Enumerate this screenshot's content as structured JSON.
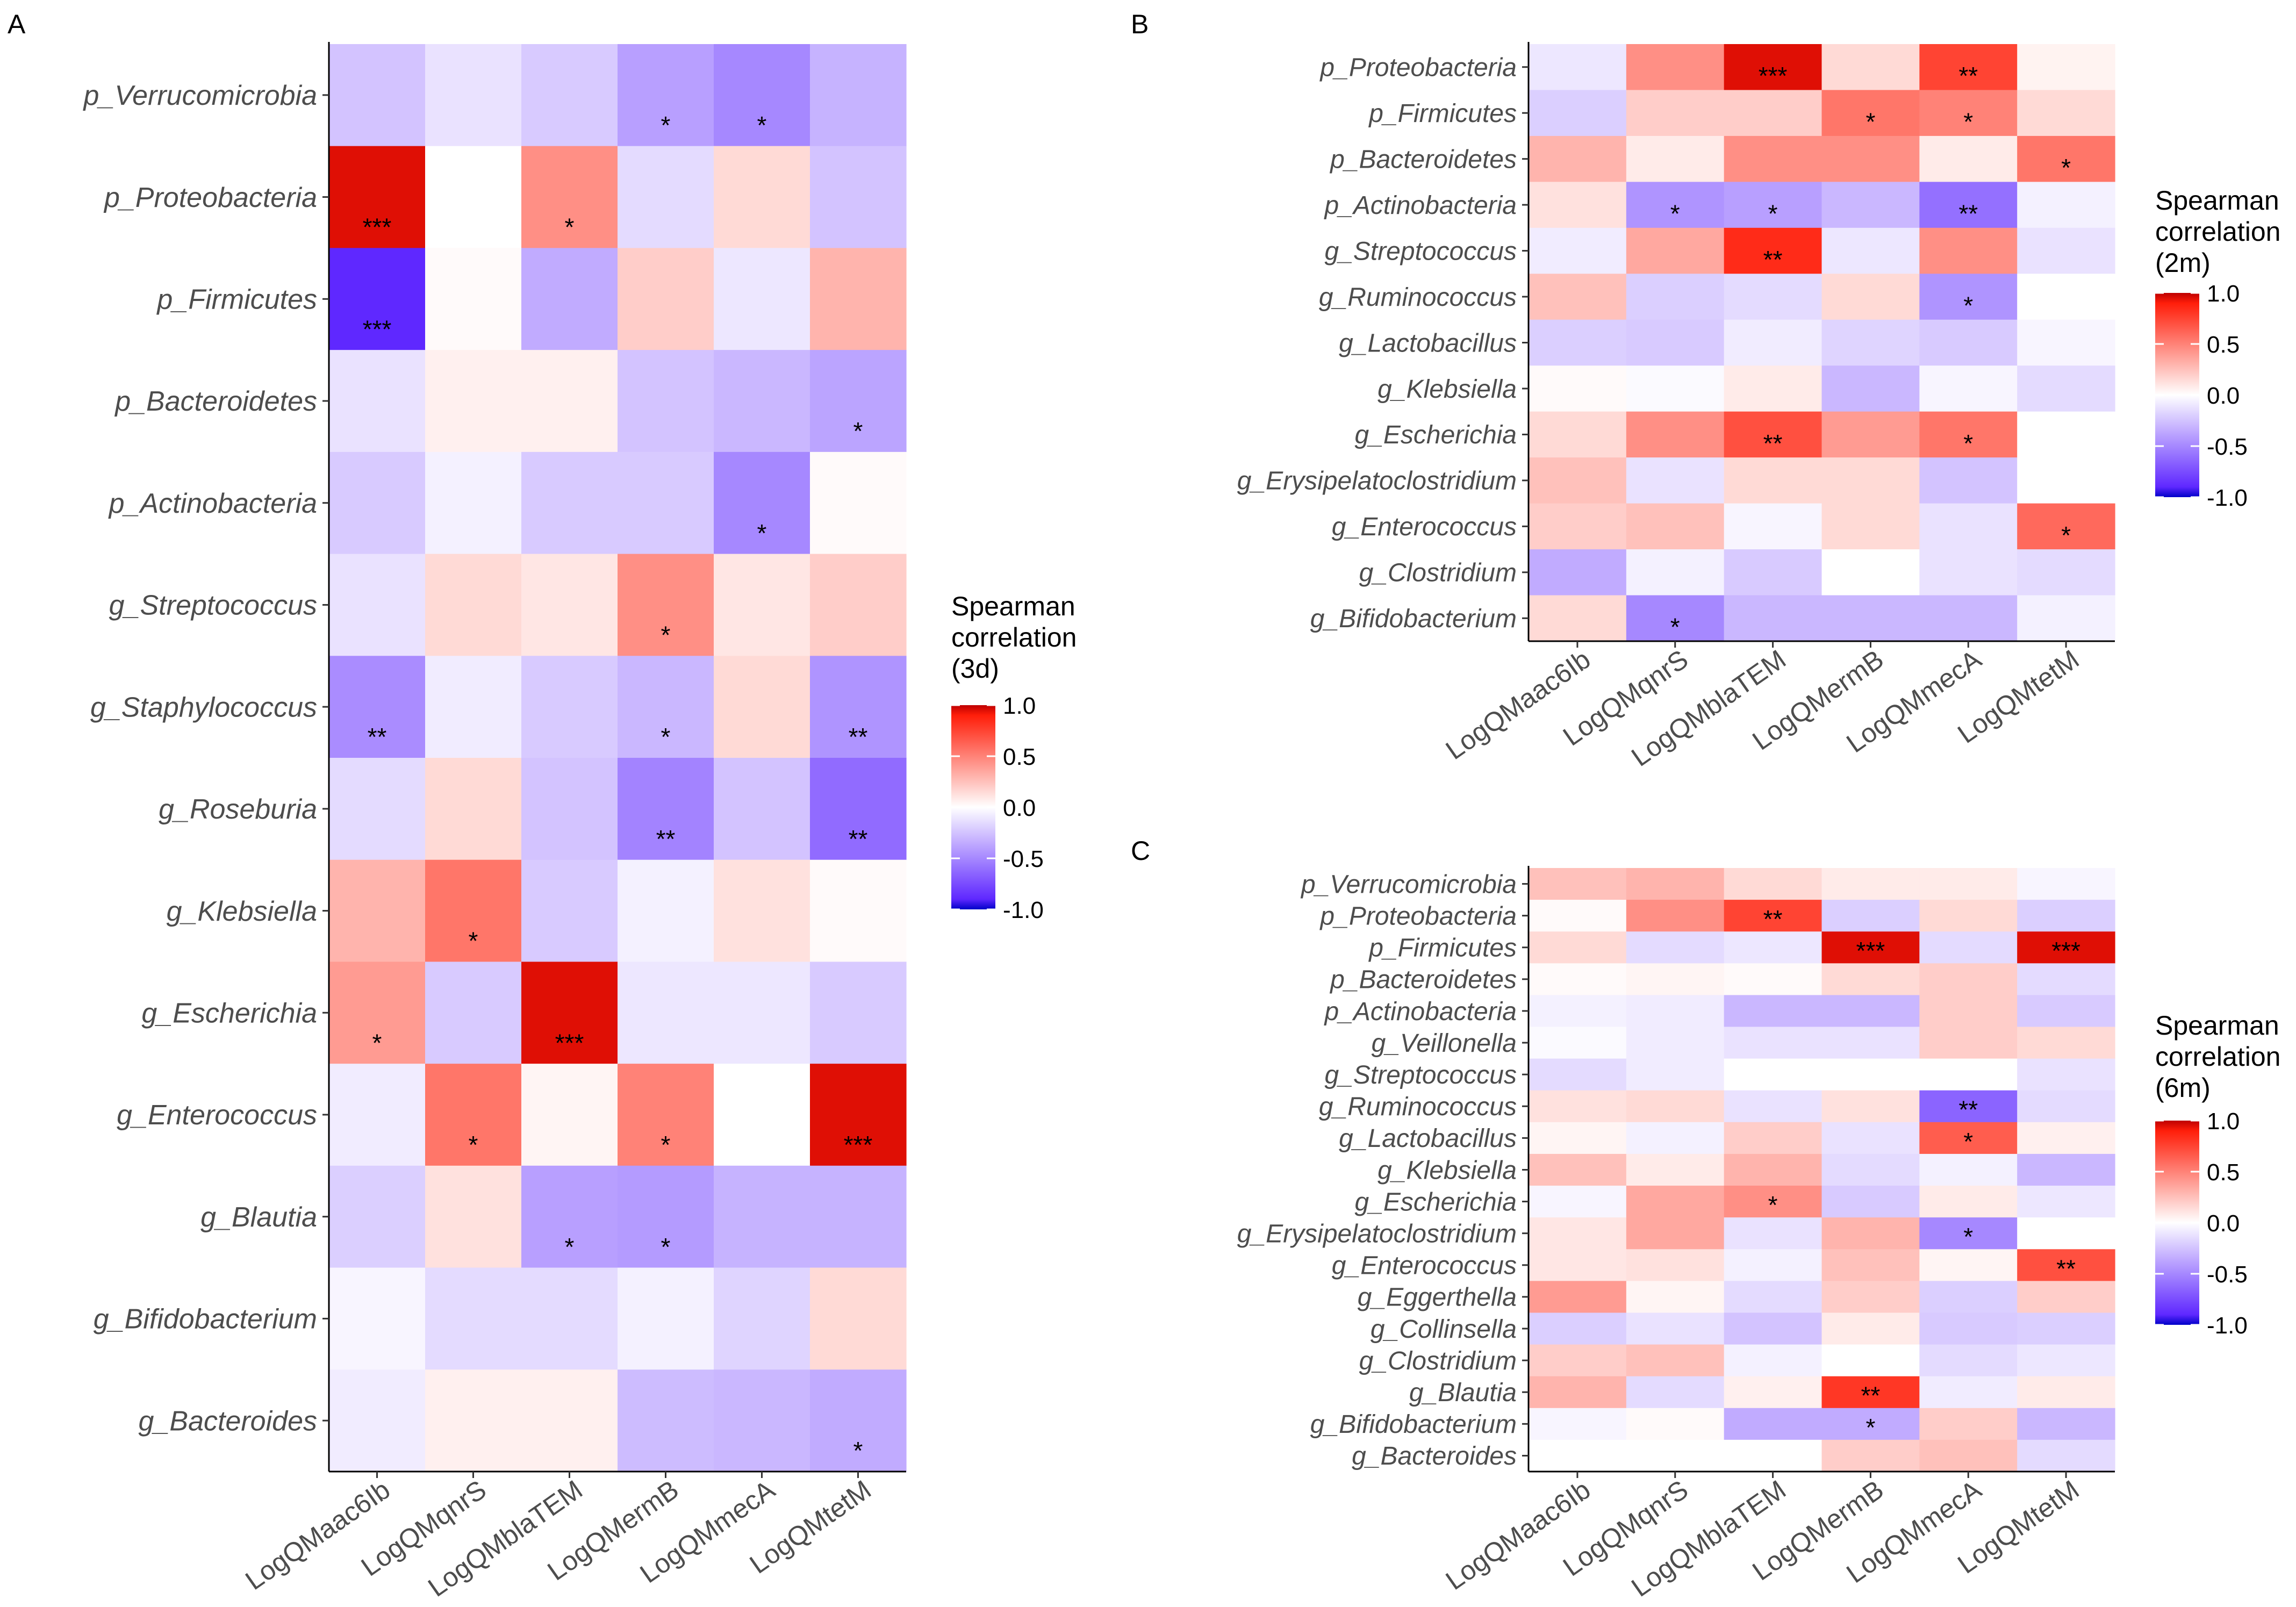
{
  "chart_data": [
    {
      "type": "heatmap",
      "panel_label": "A",
      "columns": [
        "LogQMaac6Ib",
        "LogQMqnrS",
        "LogQMblaTEM",
        "LogQMermB",
        "LogQMmecA",
        "LogQMtetM"
      ],
      "rows": [
        "p_Verrucomicrobia",
        "p_Proteobacteria",
        "p_Firmicutes",
        "p_Bacteroidetes",
        "p_Actinobacteria",
        "g_Streptococcus",
        "g_Staphylococcus",
        "g_Roseburia",
        "g_Klebsiella",
        "g_Escherichia",
        "g_Enterococcus",
        "g_Blautia",
        "g_Bifidobacterium",
        "g_Bacteroides"
      ],
      "values": [
        [
          -0.25,
          -0.12,
          -0.22,
          -0.4,
          -0.5,
          -0.32
        ],
        [
          0.95,
          0.0,
          0.45,
          -0.15,
          0.15,
          -0.25
        ],
        [
          -0.9,
          0.02,
          -0.35,
          0.2,
          -0.1,
          0.3
        ],
        [
          -0.12,
          0.06,
          0.06,
          -0.25,
          -0.3,
          -0.38
        ],
        [
          -0.22,
          -0.06,
          -0.22,
          -0.22,
          -0.5,
          0.02
        ],
        [
          -0.12,
          0.15,
          0.1,
          0.45,
          0.1,
          0.2
        ],
        [
          -0.48,
          -0.08,
          -0.22,
          -0.3,
          0.15,
          -0.45
        ],
        [
          -0.15,
          0.15,
          -0.25,
          -0.52,
          -0.25,
          -0.62
        ],
        [
          0.3,
          0.55,
          -0.22,
          -0.06,
          0.12,
          0.02
        ],
        [
          0.4,
          -0.22,
          0.95,
          -0.1,
          -0.1,
          -0.22
        ],
        [
          -0.08,
          0.55,
          0.04,
          0.5,
          0.0,
          0.95
        ],
        [
          -0.2,
          0.12,
          -0.4,
          -0.42,
          -0.32,
          -0.32
        ],
        [
          -0.04,
          -0.15,
          -0.15,
          -0.06,
          -0.18,
          0.15
        ],
        [
          -0.08,
          0.06,
          0.06,
          -0.28,
          -0.3,
          -0.35
        ]
      ],
      "significance": [
        [
          "",
          "",
          "",
          "*",
          "*",
          ""
        ],
        [
          "***",
          "",
          "*",
          "",
          "",
          ""
        ],
        [
          "***",
          "",
          "",
          "",
          "",
          ""
        ],
        [
          "",
          "",
          "",
          "",
          "",
          "*"
        ],
        [
          "",
          "",
          "",
          "",
          "*",
          ""
        ],
        [
          "",
          "",
          "",
          "*",
          "",
          ""
        ],
        [
          "**",
          "",
          "",
          "*",
          "",
          "**"
        ],
        [
          "",
          "",
          "",
          "**",
          "",
          "**"
        ],
        [
          "",
          "*",
          "",
          "",
          "",
          ""
        ],
        [
          "*",
          "",
          "***",
          "",
          "",
          ""
        ],
        [
          "",
          "*",
          "",
          "*",
          "",
          "***"
        ],
        [
          "",
          "",
          "*",
          "*",
          "",
          ""
        ],
        [
          "",
          "",
          "",
          "",
          "",
          ""
        ],
        [
          "",
          "",
          "",
          "",
          "",
          "*"
        ]
      ],
      "legend": {
        "title": [
          "Spearman",
          "correlation",
          "(3d)"
        ],
        "ticks": [
          "1.0",
          "0.5",
          "0.0",
          "-0.5",
          "-1.0"
        ],
        "range": [
          -1,
          1
        ]
      }
    },
    {
      "type": "heatmap",
      "panel_label": "B",
      "columns": [
        "LogQMaac6Ib",
        "LogQMqnrS",
        "LogQMblaTEM",
        "LogQMermB",
        "LogQMmecA",
        "LogQMtetM"
      ],
      "rows": [
        "p_Proteobacteria",
        "p_Firmicutes",
        "p_Bacteroidetes",
        "p_Actinobacteria",
        "g_Streptococcus",
        "g_Ruminococcus",
        "g_Lactobacillus",
        "g_Klebsiella",
        "g_Escherichia",
        "g_Erysipelatoclostridium",
        "g_Enterococcus",
        "g_Clostridium",
        "g_Bifidobacterium"
      ],
      "values": [
        [
          -0.1,
          0.45,
          0.95,
          0.15,
          0.75,
          0.05
        ],
        [
          -0.2,
          0.2,
          0.2,
          0.55,
          0.5,
          0.15
        ],
        [
          0.3,
          0.08,
          0.45,
          0.45,
          0.08,
          0.55
        ],
        [
          0.12,
          -0.45,
          -0.4,
          -0.3,
          -0.6,
          -0.06
        ],
        [
          -0.08,
          0.35,
          0.85,
          -0.1,
          0.45,
          -0.12
        ],
        [
          0.25,
          -0.2,
          -0.15,
          0.15,
          -0.45,
          0.0
        ],
        [
          -0.2,
          -0.22,
          -0.08,
          -0.18,
          -0.22,
          -0.04
        ],
        [
          0.02,
          -0.02,
          0.08,
          -0.3,
          -0.04,
          -0.15
        ],
        [
          0.15,
          0.45,
          0.7,
          0.4,
          0.55,
          0.0
        ],
        [
          0.25,
          -0.12,
          0.15,
          0.15,
          -0.25,
          0.0
        ],
        [
          0.2,
          0.25,
          -0.04,
          0.15,
          -0.12,
          0.6
        ],
        [
          -0.35,
          -0.06,
          -0.22,
          0.0,
          -0.12,
          -0.15
        ],
        [
          0.15,
          -0.5,
          -0.3,
          -0.3,
          -0.3,
          -0.06
        ]
      ],
      "significance": [
        [
          "",
          "",
          "***",
          "",
          "**",
          ""
        ],
        [
          "",
          "",
          "",
          "*",
          "*",
          ""
        ],
        [
          "",
          "",
          "",
          "",
          "",
          "*"
        ],
        [
          "",
          "*",
          "*",
          "",
          "**",
          ""
        ],
        [
          "",
          "",
          "**",
          "",
          "",
          ""
        ],
        [
          "",
          "",
          "",
          "",
          "*",
          ""
        ],
        [
          "",
          "",
          "",
          "",
          "",
          ""
        ],
        [
          "",
          "",
          "",
          "",
          "",
          ""
        ],
        [
          "",
          "",
          "**",
          "",
          "*",
          ""
        ],
        [
          "",
          "",
          "",
          "",
          "",
          ""
        ],
        [
          "",
          "",
          "",
          "",
          "",
          "*"
        ],
        [
          "",
          "",
          "",
          "",
          "",
          ""
        ],
        [
          "",
          "*",
          "",
          "",
          "",
          ""
        ]
      ],
      "legend": {
        "title": [
          "Spearman",
          "correlation",
          "(2m)"
        ],
        "ticks": [
          "1.0",
          "0.5",
          "0.0",
          "-0.5",
          "-1.0"
        ],
        "range": [
          -1,
          1
        ]
      }
    },
    {
      "type": "heatmap",
      "panel_label": "C",
      "columns": [
        "LogQMaac6Ib",
        "LogQMqnrS",
        "LogQMblaTEM",
        "LogQMermB",
        "LogQMmecA",
        "LogQMtetM"
      ],
      "rows": [
        "p_Verrucomicrobia",
        "p_Proteobacteria",
        "p_Firmicutes",
        "p_Bacteroidetes",
        "p_Actinobacteria",
        "g_Veillonella",
        "g_Streptococcus",
        "g_Ruminococcus",
        "g_Lactobacillus",
        "g_Klebsiella",
        "g_Escherichia",
        "g_Erysipelatoclostridium",
        "g_Enterococcus",
        "g_Eggerthella",
        "g_Collinsella",
        "g_Clostridium",
        "g_Blautia",
        "g_Bifidobacterium",
        "g_Bacteroides"
      ],
      "values": [
        [
          0.25,
          0.3,
          0.15,
          0.08,
          0.08,
          -0.04
        ],
        [
          0.02,
          0.45,
          0.75,
          -0.2,
          0.15,
          -0.2
        ],
        [
          0.15,
          -0.15,
          -0.1,
          0.95,
          -0.15,
          0.95
        ],
        [
          0.02,
          0.04,
          0.02,
          0.15,
          0.2,
          -0.15
        ],
        [
          -0.06,
          -0.08,
          -0.3,
          -0.3,
          0.2,
          -0.22
        ],
        [
          -0.02,
          -0.08,
          -0.12,
          -0.12,
          0.2,
          0.15
        ],
        [
          -0.15,
          -0.08,
          0.0,
          0.0,
          0.0,
          -0.12
        ],
        [
          0.12,
          0.15,
          -0.12,
          0.12,
          -0.65,
          -0.15
        ],
        [
          0.04,
          -0.06,
          0.2,
          -0.12,
          0.65,
          0.06
        ],
        [
          0.25,
          0.08,
          0.3,
          -0.15,
          -0.06,
          -0.3
        ],
        [
          -0.04,
          0.35,
          0.45,
          -0.22,
          0.08,
          -0.1
        ],
        [
          0.1,
          0.35,
          -0.12,
          0.3,
          -0.5,
          0.0
        ],
        [
          0.1,
          0.12,
          -0.06,
          0.25,
          0.04,
          0.7
        ],
        [
          0.4,
          0.04,
          -0.15,
          0.2,
          -0.2,
          0.2
        ],
        [
          -0.2,
          -0.12,
          -0.25,
          0.08,
          -0.22,
          -0.2
        ],
        [
          0.2,
          0.25,
          -0.06,
          0.0,
          -0.15,
          -0.1
        ],
        [
          0.3,
          -0.15,
          0.06,
          0.8,
          -0.08,
          0.08
        ],
        [
          -0.04,
          0.02,
          -0.35,
          -0.35,
          0.2,
          -0.3
        ],
        [
          0.0,
          0.0,
          0.0,
          0.2,
          0.25,
          -0.15
        ]
      ],
      "significance": [
        [
          "",
          "",
          "",
          "",
          "",
          ""
        ],
        [
          "",
          "",
          "**",
          "",
          "",
          ""
        ],
        [
          "",
          "",
          "",
          "***",
          "",
          "***"
        ],
        [
          "",
          "",
          "",
          "",
          "",
          ""
        ],
        [
          "",
          "",
          "",
          "",
          "",
          ""
        ],
        [
          "",
          "",
          "",
          "",
          "",
          ""
        ],
        [
          "",
          "",
          "",
          "",
          "",
          ""
        ],
        [
          "",
          "",
          "",
          "",
          "**",
          ""
        ],
        [
          "",
          "",
          "",
          "",
          "*",
          ""
        ],
        [
          "",
          "",
          "",
          "",
          "",
          ""
        ],
        [
          "",
          "",
          "*",
          "",
          "",
          ""
        ],
        [
          "",
          "",
          "",
          "",
          "*",
          ""
        ],
        [
          "",
          "",
          "",
          "",
          "",
          "**"
        ],
        [
          "",
          "",
          "",
          "",
          "",
          ""
        ],
        [
          "",
          "",
          "",
          "",
          "",
          ""
        ],
        [
          "",
          "",
          "",
          "",
          "",
          ""
        ],
        [
          "",
          "",
          "",
          "**",
          "",
          ""
        ],
        [
          "",
          "",
          "",
          "*",
          "",
          ""
        ],
        [
          "",
          "",
          "",
          "",
          "",
          ""
        ]
      ],
      "legend": {
        "title": [
          "Spearman",
          "correlation",
          "(6m)"
        ],
        "ticks": [
          "1.0",
          "0.5",
          "0.0",
          "-0.5",
          "-1.0"
        ],
        "range": [
          -1,
          1
        ]
      }
    }
  ],
  "colors": {
    "low": "#0000c8",
    "mid_low": "#7b3cff",
    "mid": "#ffffff",
    "mid_high": "#ff5030",
    "high": "#c80000"
  }
}
